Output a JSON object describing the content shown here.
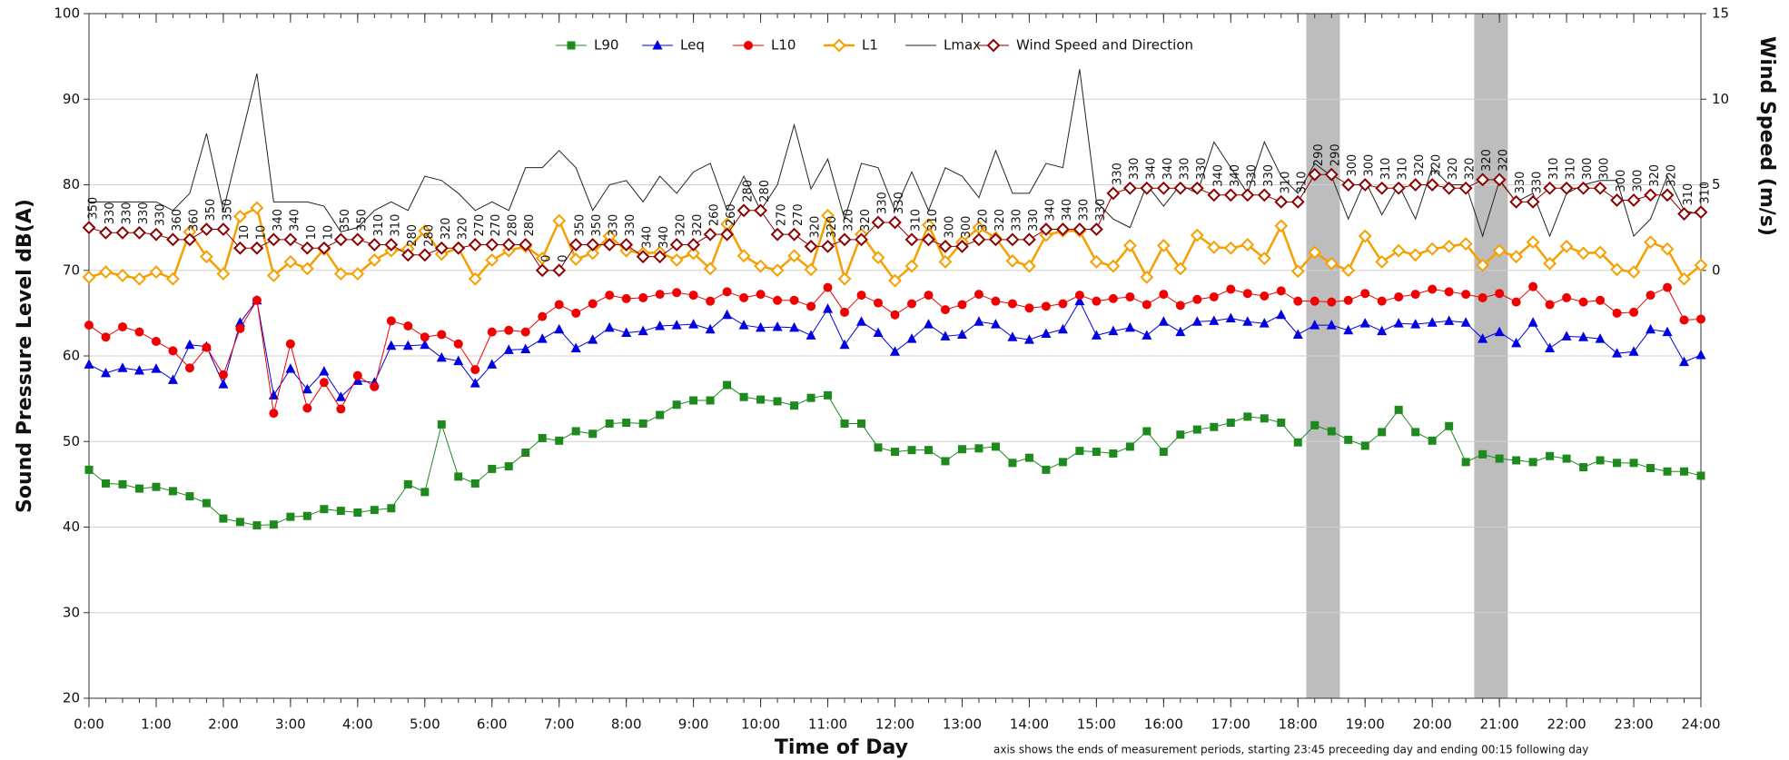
{
  "chart_data": {
    "type": "line",
    "ylabel": "Sound Pressure Level dB(A)",
    "y2label": "Wind Speed (m/s)",
    "xlabel": "Time of Day",
    "note": "axis shows the ends of measurement periods, starting 23:45 preceeding day and ending 00:15 following day",
    "xlim": [
      0,
      24
    ],
    "ylim": [
      20,
      100
    ],
    "y2lim": [
      -25,
      15
    ],
    "yticks": [
      20,
      30,
      40,
      50,
      60,
      70,
      80,
      90,
      100
    ],
    "y2ticks": [
      0,
      5,
      10,
      15
    ],
    "grid": true,
    "legend": "top",
    "shaded_ranges": [
      [
        18.125,
        18.625
      ],
      [
        20.625,
        21.125
      ]
    ],
    "xticks": [
      {
        "value": 0,
        "label": "0:00"
      },
      {
        "value": 1,
        "label": "1:00"
      },
      {
        "value": 2,
        "label": "2:00"
      },
      {
        "value": 3,
        "label": "3:00"
      },
      {
        "value": 4,
        "label": "4:00"
      },
      {
        "value": 5,
        "label": "5:00"
      },
      {
        "value": 6,
        "label": "6:00"
      },
      {
        "value": 7,
        "label": "7:00"
      },
      {
        "value": 8,
        "label": "8:00"
      },
      {
        "value": 9,
        "label": "9:00"
      },
      {
        "value": 10,
        "label": "10:00"
      },
      {
        "value": 11,
        "label": "11:00"
      },
      {
        "value": 12,
        "label": "12:00"
      },
      {
        "value": 13,
        "label": "13:00"
      },
      {
        "value": 14,
        "label": "14:00"
      },
      {
        "value": 15,
        "label": "15:00"
      },
      {
        "value": 16,
        "label": "16:00"
      },
      {
        "value": 17,
        "label": "17:00"
      },
      {
        "value": 18,
        "label": "18:00"
      },
      {
        "value": 19,
        "label": "19:00"
      },
      {
        "value": 20,
        "label": "20:00"
      },
      {
        "value": 21,
        "label": "21:00"
      },
      {
        "value": 22,
        "label": "22:00"
      },
      {
        "value": 23,
        "label": "23:00"
      },
      {
        "value": 24,
        "label": "24:00"
      }
    ],
    "x": [
      0,
      0.25,
      0.5,
      0.75,
      1,
      1.25,
      1.5,
      1.75,
      2,
      2.25,
      2.5,
      2.75,
      3,
      3.25,
      3.5,
      3.75,
      4,
      4.25,
      4.5,
      4.75,
      5,
      5.25,
      5.5,
      5.75,
      6,
      6.25,
      6.5,
      6.75,
      7,
      7.25,
      7.5,
      7.75,
      8,
      8.25,
      8.5,
      8.75,
      9,
      9.25,
      9.5,
      9.75,
      10,
      10.25,
      10.5,
      10.75,
      11,
      11.25,
      11.5,
      11.75,
      12,
      12.25,
      12.5,
      12.75,
      13,
      13.25,
      13.5,
      13.75,
      14,
      14.25,
      14.5,
      14.75,
      15,
      15.25,
      15.5,
      15.75,
      16,
      16.25,
      16.5,
      16.75,
      17,
      17.25,
      17.5,
      17.75,
      18,
      18.25,
      18.5,
      18.75,
      19,
      19.25,
      19.5,
      19.75,
      20,
      20.25,
      20.5,
      20.75,
      21,
      21.25,
      21.5,
      21.75,
      22,
      22.25,
      22.5,
      22.75,
      23,
      23.25,
      23.5,
      23.75,
      24
    ],
    "series": [
      {
        "name": "L90",
        "color": "#1e8a1e",
        "marker": "square",
        "values": [
          46.7,
          45.1,
          45.0,
          44.5,
          44.7,
          44.2,
          43.6,
          42.8,
          41.0,
          40.6,
          40.2,
          40.3,
          41.2,
          41.3,
          42.1,
          41.9,
          41.7,
          42.0,
          42.2,
          45.0,
          44.1,
          52.0,
          45.9,
          45.1,
          46.8,
          47.1,
          48.7,
          50.4,
          50.1,
          51.2,
          50.9,
          52.1,
          52.2,
          52.1,
          53.1,
          54.3,
          54.8,
          54.8,
          56.6,
          55.2,
          54.9,
          54.7,
          54.2,
          55.1,
          55.4,
          52.1,
          52.1,
          49.3,
          48.8,
          49.0,
          49.0,
          47.7,
          49.1,
          49.2,
          49.4,
          47.5,
          48.1,
          46.7,
          47.6,
          48.9,
          48.8,
          48.6,
          49.4,
          51.2,
          48.8,
          50.8,
          51.4,
          51.7,
          52.2,
          52.9,
          52.7,
          52.2,
          49.9,
          51.9,
          51.2,
          50.2,
          49.5,
          51.1,
          53.7,
          51.1,
          50.1,
          51.8,
          47.6,
          48.5,
          48.0,
          47.8,
          47.6,
          48.3,
          48.0,
          47.0,
          47.8,
          47.5,
          47.5,
          46.9,
          46.5,
          46.5,
          46.0
        ]
      },
      {
        "name": "Leq",
        "color": "#0000e0",
        "marker": "triangle",
        "values": [
          59.0,
          58.0,
          58.6,
          58.3,
          58.5,
          57.2,
          61.3,
          61.1,
          56.7,
          63.9,
          66.5,
          55.4,
          58.5,
          56.1,
          58.2,
          55.2,
          57.1,
          56.9,
          61.2,
          61.2,
          61.3,
          59.8,
          59.4,
          56.8,
          59.0,
          60.7,
          60.8,
          62.0,
          63.1,
          60.9,
          61.9,
          63.3,
          62.7,
          62.9,
          63.5,
          63.6,
          63.7,
          63.1,
          64.8,
          63.6,
          63.3,
          63.4,
          63.3,
          62.4,
          65.5,
          61.3,
          64.0,
          62.7,
          60.5,
          62.0,
          63.7,
          62.3,
          62.5,
          64.0,
          63.7,
          62.2,
          61.9,
          62.6,
          63.1,
          66.4,
          62.4,
          62.9,
          63.3,
          62.4,
          64.0,
          62.8,
          64.0,
          64.1,
          64.4,
          64.0,
          63.8,
          64.8,
          62.5,
          63.6,
          63.6,
          63.0,
          63.8,
          62.9,
          63.8,
          63.7,
          63.9,
          64.1,
          63.9,
          62.0,
          62.8,
          61.5,
          63.9,
          60.9,
          62.3,
          62.2,
          62.0,
          60.3,
          60.5,
          63.1,
          62.8,
          59.3,
          60.1
        ]
      },
      {
        "name": "L10",
        "color": "#f00000",
        "marker": "circle",
        "values": [
          63.6,
          62.2,
          63.4,
          62.8,
          61.7,
          60.6,
          58.6,
          61.0,
          57.8,
          63.2,
          66.5,
          53.3,
          61.4,
          53.9,
          56.9,
          53.8,
          57.7,
          56.4,
          64.1,
          63.5,
          62.2,
          62.5,
          61.4,
          58.4,
          62.8,
          63.0,
          62.8,
          64.6,
          66.0,
          65.0,
          66.1,
          67.1,
          66.7,
          66.8,
          67.2,
          67.4,
          67.1,
          66.4,
          67.5,
          66.8,
          67.2,
          66.5,
          66.5,
          65.8,
          68.0,
          65.1,
          67.1,
          66.2,
          64.8,
          66.1,
          67.1,
          65.4,
          66.0,
          67.2,
          66.4,
          66.1,
          65.6,
          65.8,
          66.1,
          67.1,
          66.4,
          66.7,
          66.9,
          66.0,
          67.2,
          65.9,
          66.6,
          66.9,
          67.8,
          67.3,
          67.0,
          67.6,
          66.4,
          66.4,
          66.3,
          66.5,
          67.3,
          66.4,
          66.9,
          67.2,
          67.8,
          67.5,
          67.2,
          66.8,
          67.3,
          66.3,
          68.1,
          66.0,
          66.8,
          66.3,
          66.5,
          65.0,
          65.1,
          67.1,
          68.0,
          64.2,
          64.3
        ]
      },
      {
        "name": "L1",
        "color": "#f5a000",
        "marker": "diamond-open",
        "values": [
          69.2,
          69.8,
          69.4,
          69.0,
          69.8,
          69.0,
          74.5,
          71.6,
          69.6,
          76.3,
          77.3,
          69.4,
          71.0,
          70.2,
          72.5,
          69.6,
          69.6,
          71.2,
          72.3,
          72.5,
          74.6,
          71.9,
          72.6,
          69.0,
          71.2,
          72.3,
          72.8,
          71.4,
          75.8,
          71.3,
          72.0,
          74.0,
          72.3,
          72.0,
          72.1,
          71.2,
          72.0,
          70.2,
          75.4,
          71.7,
          70.5,
          70.0,
          71.7,
          70.1,
          76.4,
          69.0,
          74.2,
          71.5,
          68.8,
          70.5,
          75.3,
          71.0,
          73.3,
          75.0,
          73.8,
          71.1,
          70.5,
          74.1,
          74.6,
          74.6,
          71.0,
          70.5,
          72.9,
          69.2,
          72.9,
          70.2,
          74.1,
          72.7,
          72.6,
          73.0,
          71.4,
          75.2,
          69.9,
          72.1,
          70.8,
          70.0,
          74.0,
          71.0,
          72.3,
          71.8,
          72.5,
          72.8,
          73.1,
          70.6,
          72.3,
          71.6,
          73.3,
          70.8,
          72.8,
          72.0,
          72.1,
          70.1,
          69.8,
          73.3,
          72.5,
          69.0,
          70.6
        ]
      },
      {
        "name": "Lmax",
        "color": "#222222",
        "marker": "none",
        "values": [
          78,
          78,
          78,
          78,
          78,
          77,
          79,
          86,
          77,
          85,
          93,
          78,
          78,
          78,
          77.5,
          74.5,
          75,
          77,
          78,
          77,
          81,
          80.5,
          79,
          77,
          78,
          77,
          82,
          82,
          84,
          82,
          77,
          80,
          80.5,
          78,
          81,
          79,
          81.5,
          82.5,
          77,
          81,
          77,
          80,
          87,
          79.5,
          83,
          76,
          82.5,
          82,
          77,
          81.5,
          77,
          82,
          81,
          78.5,
          84,
          79,
          79,
          82.5,
          82,
          93.5,
          78,
          76,
          75,
          80,
          77.5,
          80,
          79,
          85,
          82,
          79,
          85,
          81,
          79,
          82.5,
          81,
          76,
          80.5,
          76.5,
          80,
          76,
          82,
          80,
          80,
          74,
          80.5,
          78,
          79,
          74,
          79,
          80,
          80.5,
          80.5,
          74,
          76,
          81,
          77,
          76.5
        ]
      },
      {
        "name": "Wind Speed and Direction",
        "color": "#8b0000",
        "marker": "diamond-open",
        "axis": "y2",
        "values": [
          2.5,
          2.2,
          2.2,
          2.2,
          2.1,
          1.8,
          1.8,
          2.4,
          2.4,
          1.3,
          1.3,
          1.8,
          1.8,
          1.3,
          1.3,
          1.8,
          1.8,
          1.5,
          1.5,
          0.9,
          0.9,
          1.3,
          1.3,
          1.5,
          1.5,
          1.5,
          1.5,
          0,
          0,
          1.5,
          1.5,
          1.5,
          1.5,
          0.8,
          0.8,
          1.5,
          1.5,
          2.1,
          2.1,
          3.5,
          3.5,
          2.1,
          2.1,
          1.4,
          1.4,
          1.8,
          1.8,
          2.8,
          2.8,
          1.8,
          1.8,
          1.4,
          1.4,
          1.8,
          1.8,
          1.8,
          1.8,
          2.4,
          2.4,
          2.4,
          2.4,
          4.5,
          4.8,
          4.8,
          4.8,
          4.8,
          4.8,
          4.4,
          4.4,
          4.4,
          4.4,
          4.0,
          4.0,
          5.6,
          5.6,
          5.0,
          5.0,
          4.8,
          4.8,
          5.0,
          5.0,
          4.8,
          4.8,
          5.3,
          5.3,
          4.0,
          4.0,
          4.8,
          4.8,
          4.8,
          4.8,
          4.1,
          4.1,
          4.4,
          4.4,
          3.3,
          3.4
        ],
        "direction": [
          350,
          330,
          330,
          330,
          330,
          360,
          360,
          350,
          350,
          10,
          10,
          340,
          340,
          10,
          10,
          350,
          350,
          310,
          310,
          280,
          280,
          320,
          320,
          270,
          270,
          280,
          280,
          0,
          0,
          350,
          350,
          330,
          330,
          340,
          340,
          320,
          320,
          260,
          260,
          280,
          280,
          270,
          270,
          320,
          320,
          320,
          320,
          330,
          330,
          310,
          310,
          300,
          300,
          320,
          320,
          330,
          330,
          340,
          340,
          330,
          330,
          330,
          330,
          340,
          340,
          330,
          330,
          340,
          340,
          330,
          330,
          310,
          310,
          290,
          290,
          300,
          300,
          310,
          310,
          320,
          320,
          320,
          320,
          320,
          320,
          330,
          330,
          310,
          310,
          300,
          300,
          300,
          300,
          320,
          320,
          310,
          310
        ]
      }
    ]
  }
}
